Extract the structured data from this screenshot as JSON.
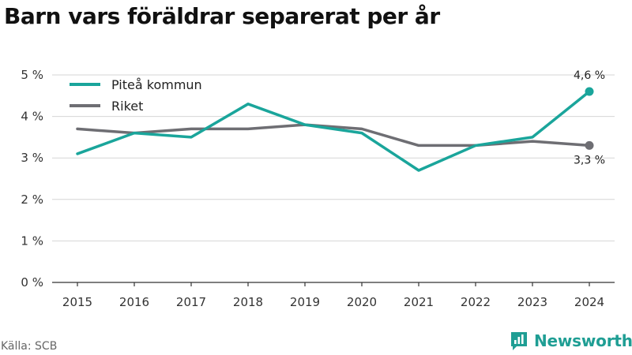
{
  "title": "Barn vars föräldrar separerat per år",
  "source": "Källa: SCB",
  "brand": {
    "name": "Newsworthy",
    "icon": "newsworthy-logo-icon",
    "color": "#1f9e94"
  },
  "chart_data": {
    "type": "line",
    "x": [
      2015,
      2016,
      2017,
      2018,
      2019,
      2020,
      2021,
      2022,
      2023,
      2024
    ],
    "x_tick_labels": [
      "2015",
      "2016",
      "2017",
      "2018",
      "2019",
      "2020",
      "2021",
      "2022",
      "2023",
      "2024"
    ],
    "y_tick_labels": [
      "0 %",
      "1 %",
      "2 %",
      "3 %",
      "4 %",
      "5 %"
    ],
    "y_ticks": [
      0,
      1,
      2,
      3,
      4,
      5
    ],
    "ylim": [
      0,
      5
    ],
    "grid": true,
    "legend_position": "top-left",
    "series": [
      {
        "name": "Piteå kommun",
        "color": "#1aa59b",
        "values": [
          3.1,
          3.6,
          3.5,
          4.3,
          3.8,
          3.6,
          2.7,
          3.3,
          3.5,
          4.6
        ],
        "end_label": "4,6 %"
      },
      {
        "name": "Riket",
        "color": "#6e6e73",
        "values": [
          3.7,
          3.6,
          3.7,
          3.7,
          3.8,
          3.7,
          3.3,
          3.3,
          3.4,
          3.3
        ],
        "end_label": "3,3 %"
      }
    ]
  }
}
